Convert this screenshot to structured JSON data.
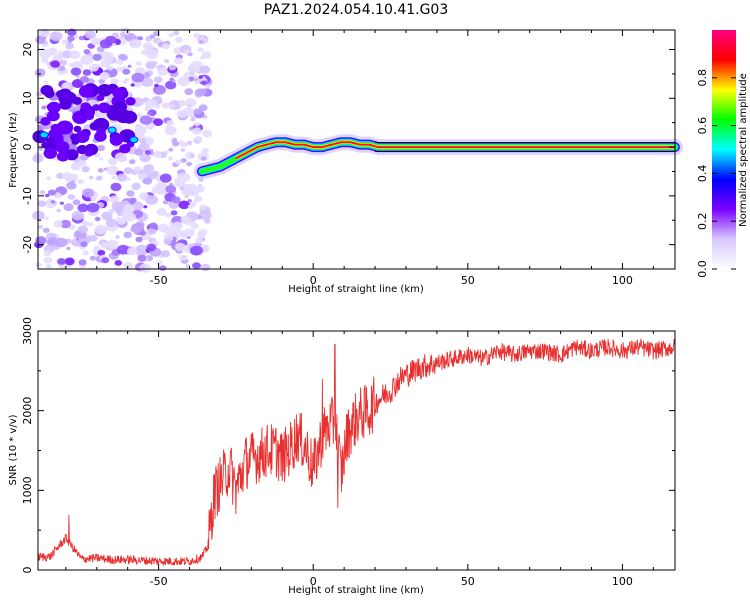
{
  "title": "PAZ1.2024.054.10.41.G03",
  "chart_data": [
    {
      "type": "heatmap",
      "xlabel": "Height of straight line (km)",
      "ylabel": "Frequency (Hz)",
      "xlim": [
        -89,
        117
      ],
      "ylim": [
        -25,
        24
      ],
      "x_ticks": [
        -50,
        0,
        50,
        100
      ],
      "y_ticks": [
        20,
        10,
        0,
        -10,
        -20
      ],
      "colorbar": {
        "label": "Normalized spectral amplitude",
        "range": [
          0,
          1
        ],
        "ticks": [
          0.0,
          0.2,
          0.4,
          0.6,
          0.8
        ],
        "colormap": [
          "#ffffff",
          "#d8c8ff",
          "#7a00ff",
          "#0000ff",
          "#00ffff",
          "#00ff00",
          "#ffff00",
          "#ff0000",
          "#ff0080"
        ]
      },
      "ridge": {
        "x": [
          -36,
          -33,
          -30,
          -27,
          -24,
          -21,
          -18,
          -15,
          -12,
          -9,
          -6,
          -3,
          0,
          3,
          6,
          9,
          12,
          15,
          18,
          21,
          25,
          30,
          40,
          60,
          80,
          100,
          117
        ],
        "y": [
          -5,
          -4.5,
          -4,
          -3,
          -2,
          -1,
          0,
          0.5,
          1,
          1,
          0.5,
          0.5,
          0,
          0,
          0.5,
          1,
          1,
          0.5,
          0.5,
          0,
          0,
          0,
          0,
          0,
          0,
          0,
          0
        ]
      },
      "noise_region_x": [
        -89,
        -36
      ]
    },
    {
      "type": "line",
      "xlabel": "Height of straight line (km)",
      "ylabel": "SNR (10 * v/v)",
      "xlim": [
        -89,
        117
      ],
      "ylim": [
        0,
        3000
      ],
      "x_ticks": [
        -50,
        0,
        50,
        100
      ],
      "y_ticks": [
        0,
        1000,
        2000,
        3000
      ],
      "line_color": "#e83030",
      "x": [
        -89,
        -85,
        -80,
        -75,
        -70,
        -65,
        -60,
        -55,
        -50,
        -45,
        -40,
        -36,
        -34,
        -33,
        -32,
        -30,
        -27,
        -25,
        -22,
        -20,
        -17,
        -15,
        -12,
        -10,
        -7,
        -5,
        -2,
        0,
        3,
        5,
        7,
        8,
        9,
        11,
        13,
        15,
        18,
        20,
        23,
        25,
        28,
        30,
        35,
        40,
        45,
        50,
        55,
        60,
        65,
        70,
        75,
        80,
        85,
        90,
        95,
        100,
        105,
        110,
        117
      ],
      "y": [
        160,
        170,
        400,
        140,
        150,
        130,
        130,
        120,
        110,
        110,
        110,
        160,
        300,
        650,
        950,
        1100,
        1300,
        1000,
        1350,
        1400,
        1450,
        1500,
        1500,
        1400,
        1550,
        1700,
        1500,
        1250,
        1700,
        1800,
        1850,
        1600,
        1200,
        1700,
        1850,
        1950,
        2000,
        2100,
        2200,
        2250,
        2400,
        2450,
        2550,
        2600,
        2650,
        2700,
        2650,
        2750,
        2700,
        2750,
        2750,
        2700,
        2800,
        2750,
        2800,
        2750,
        2800,
        2750,
        2800
      ],
      "spike_peaks": {
        "x": [
          -79,
          3,
          7,
          8
        ],
        "y": [
          690,
          2400,
          2830,
          780
        ]
      }
    }
  ]
}
